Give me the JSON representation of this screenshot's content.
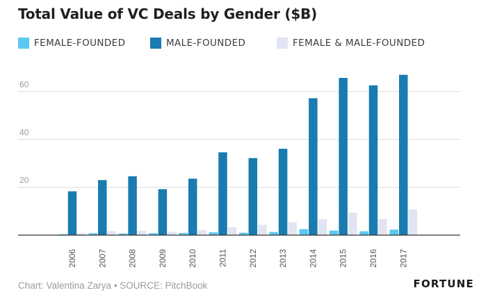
{
  "chart_data": {
    "type": "bar",
    "title": "Total Value of VC Deals by Gender ($B)",
    "xlabel": "",
    "ylabel": "",
    "categories": [
      "2006",
      "2007",
      "2008",
      "2009",
      "2010",
      "2011",
      "2012",
      "2013",
      "2014",
      "2015",
      "2016",
      "2017"
    ],
    "series": [
      {
        "name": "FEMALE-FOUNDED",
        "color": "#5bc8f0",
        "values": [
          0.4,
          0.8,
          0.7,
          0.8,
          0.9,
          1.2,
          1.0,
          1.3,
          2.5,
          1.9,
          1.6,
          2.3
        ]
      },
      {
        "name": "MALE-FOUNDED",
        "color": "#1a7bb0",
        "values": [
          18.3,
          23.0,
          24.6,
          19.2,
          23.6,
          34.6,
          32.2,
          36.1,
          57.2,
          65.7,
          62.6,
          67.0
        ]
      },
      {
        "name": "FEMALE & MALE-FOUNDED",
        "color": "#e1e4f2",
        "values": [
          0.8,
          1.7,
          1.8,
          1.4,
          2.1,
          3.3,
          4.3,
          5.4,
          6.7,
          9.4,
          6.7,
          10.8
        ]
      }
    ],
    "yticks": [
      "20",
      "40",
      "60"
    ],
    "ylim": [
      0,
      80
    ],
    "grid": true,
    "legend_position": "top-left"
  },
  "footer": {
    "credit": "Chart: Valentina Zarya • SOURCE: PitchBook",
    "logo": "FORTUNE"
  }
}
